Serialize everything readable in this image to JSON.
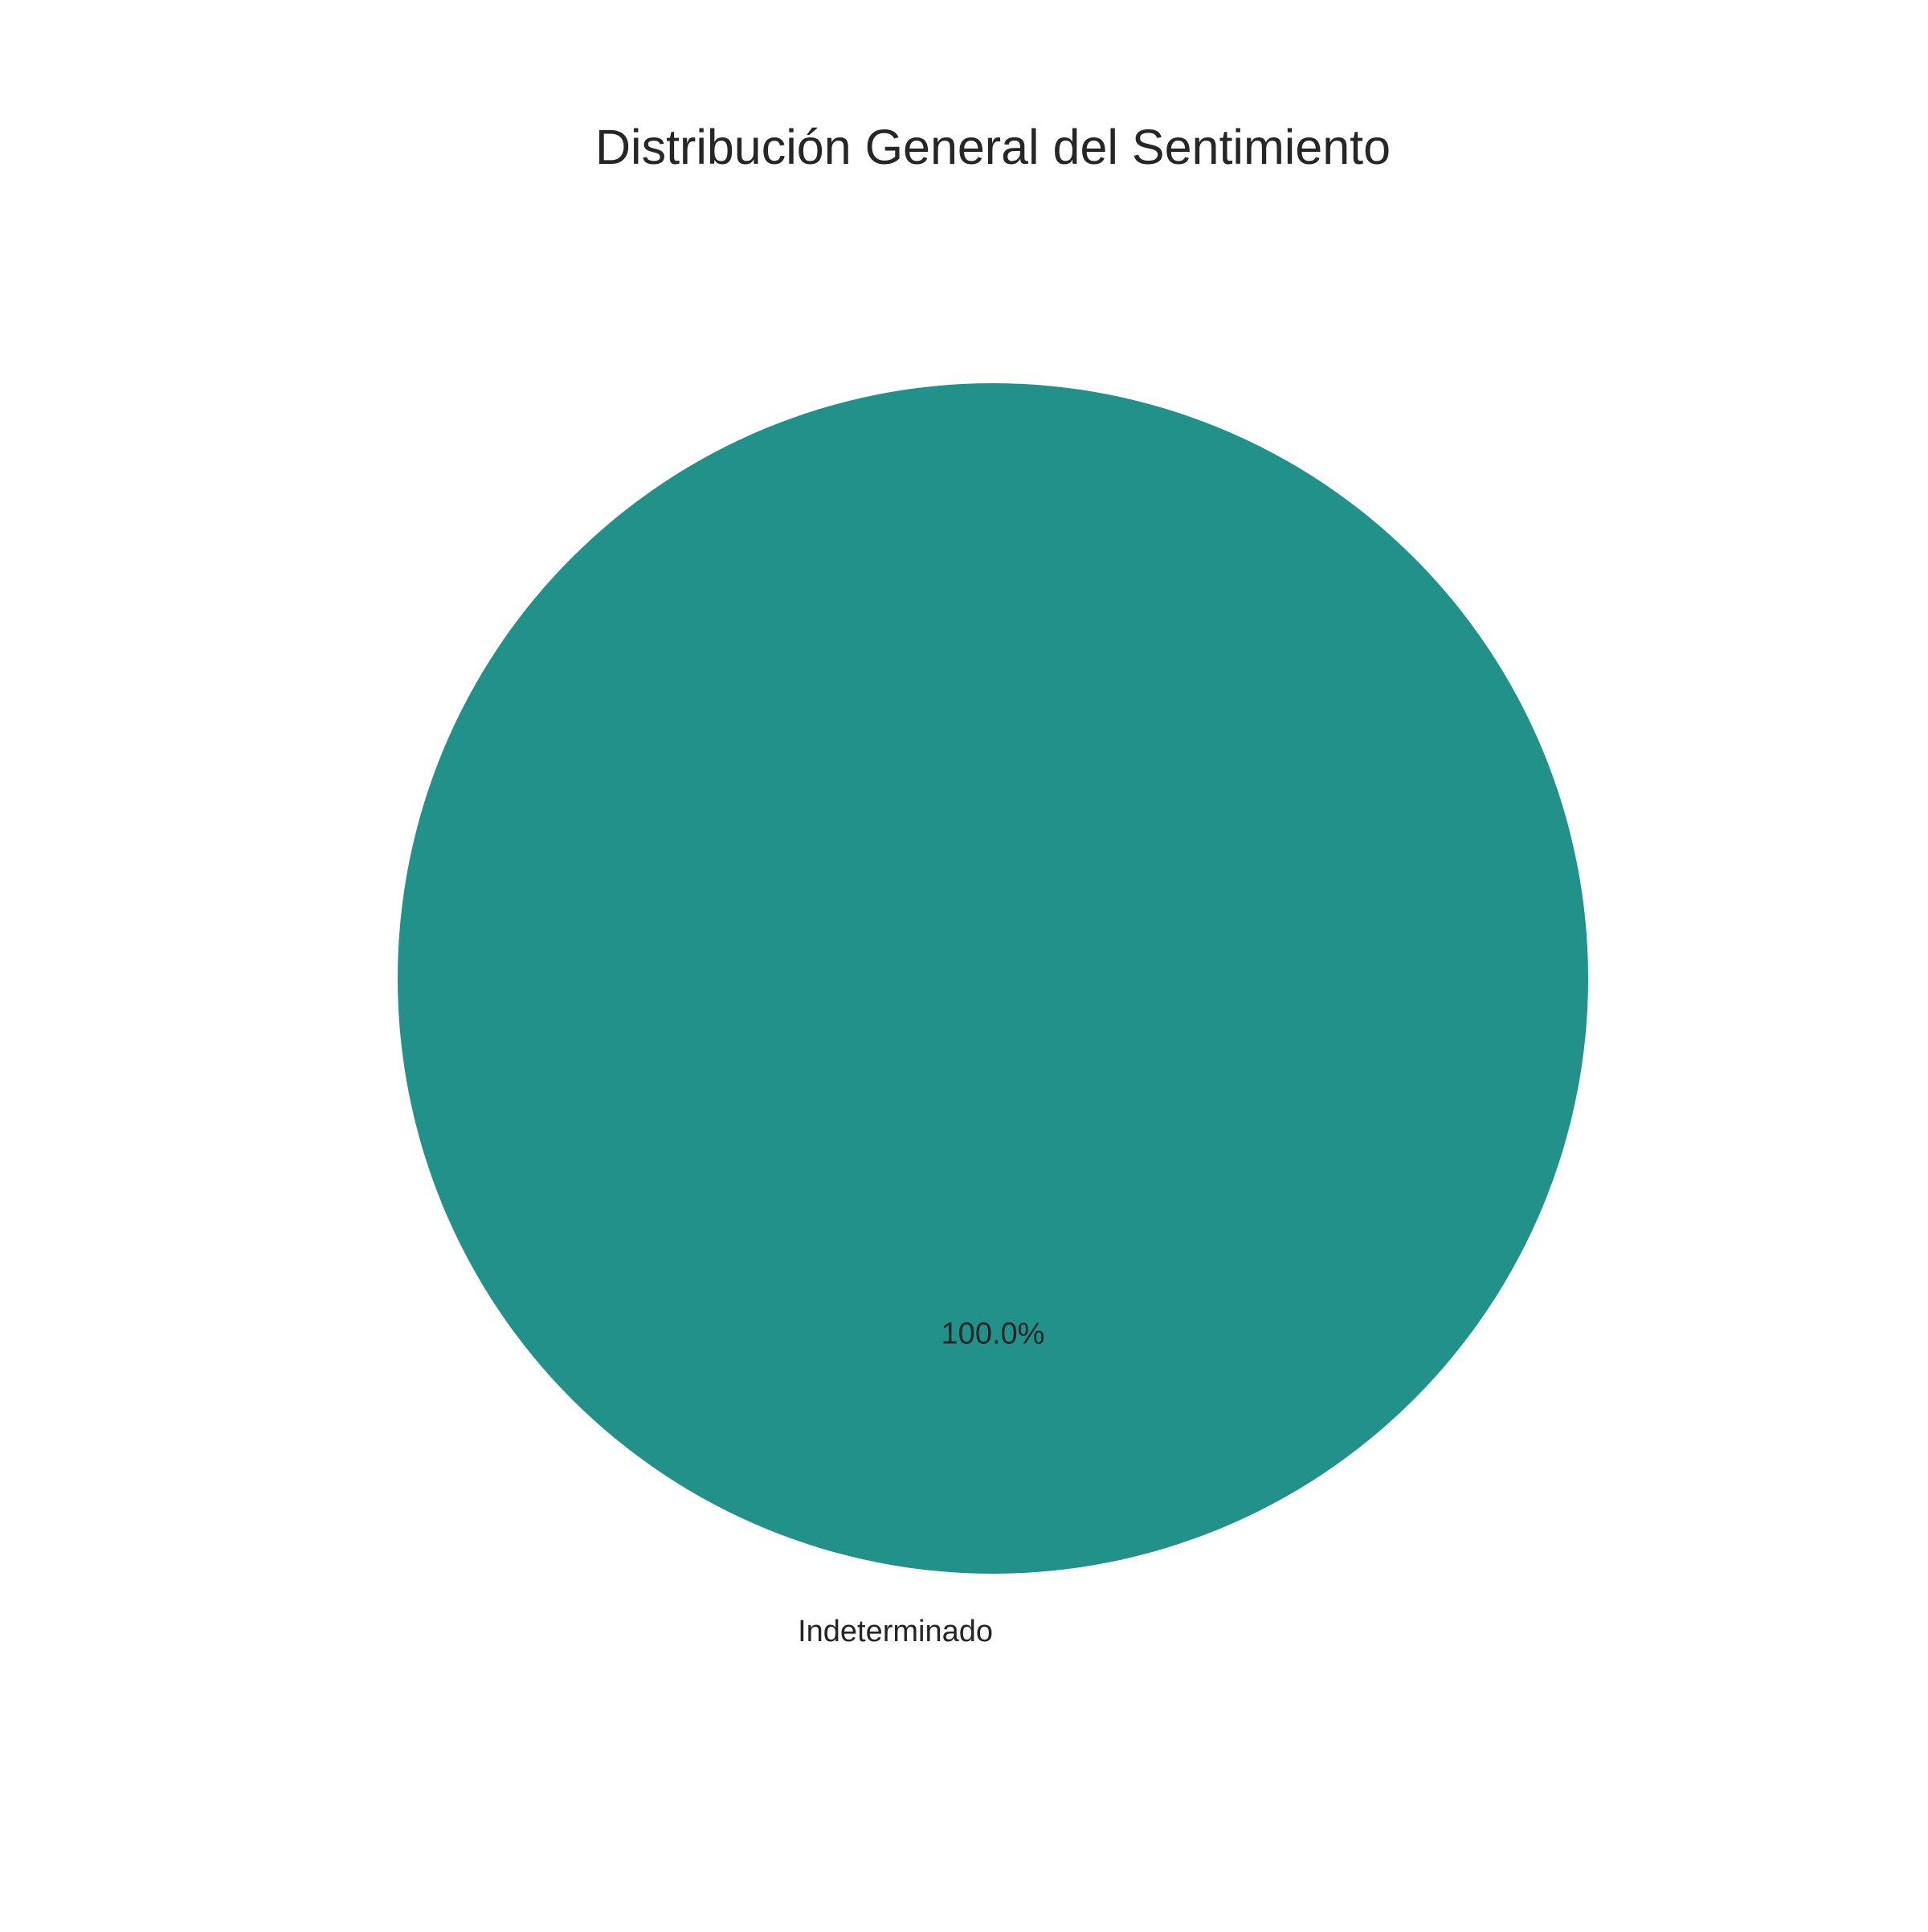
{
  "chart_data": {
    "type": "pie",
    "title": "Distribución General del Sentimiento",
    "slices": [
      {
        "label": "Indeterminado",
        "value": 100.0,
        "percent_label": "100.0%",
        "color": "#219189"
      }
    ]
  }
}
